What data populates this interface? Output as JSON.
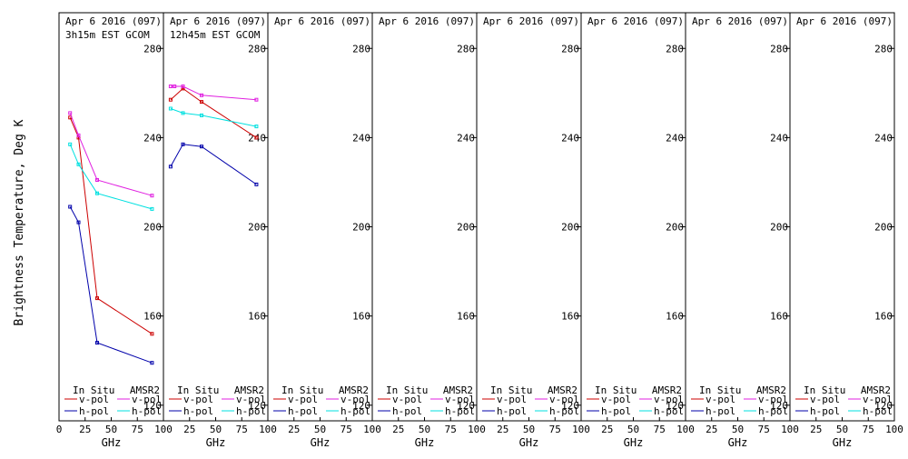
{
  "ylabel": "Brightness Temperature, Deg K",
  "yticks": [
    "120",
    "160",
    "200",
    "240",
    "280"
  ],
  "legend": {
    "col1_title": "In Situ",
    "col2_title": "AMSR2",
    "v_label": "v-pol",
    "h_label": "h-pol"
  },
  "colors": {
    "insitu_v": "#cc0000",
    "insitu_h": "#0000aa",
    "amsr2_v": "#e020e0",
    "amsr2_h": "#00e0e0",
    "axis": "#000000"
  },
  "chart_data": [
    {
      "type": "line",
      "title": "Apr 6 2016 (097)",
      "subtitle": "3h15m EST GCOM",
      "xlabel": "GHz",
      "xticks": [
        "0",
        "25",
        "50",
        "75",
        "100"
      ],
      "ylabel": "Brightness Temperature, Deg K",
      "xlim": [
        0,
        100
      ],
      "ylim": [
        113,
        296
      ],
      "series": [
        {
          "name": "In Situ v-pol",
          "x": [
            10.65,
            18.7,
            36.5,
            89
          ],
          "y": [
            249,
            240,
            168,
            152
          ]
        },
        {
          "name": "In Situ h-pol",
          "x": [
            10.65,
            18.7,
            36.5,
            89
          ],
          "y": [
            209,
            202,
            148,
            139
          ]
        },
        {
          "name": "AMSR2 v-pol",
          "x": [
            10.65,
            18.7,
            36.5,
            89
          ],
          "y": [
            251,
            241,
            221,
            214
          ]
        },
        {
          "name": "AMSR2 h-pol",
          "x": [
            10.65,
            18.7,
            36.5,
            89
          ],
          "y": [
            237,
            228,
            215,
            208
          ]
        }
      ]
    },
    {
      "type": "line",
      "title": "Apr 6 2016 (097)",
      "subtitle": "12h45m EST GCOM",
      "xlabel": "GHz",
      "xticks": [
        "25",
        "50",
        "75",
        "100"
      ],
      "ylabel": "Brightness Temperature, Deg K",
      "xlim": [
        0,
        100
      ],
      "ylim": [
        113,
        296
      ],
      "series": [
        {
          "name": "In Situ v-pol",
          "x": [
            6.9,
            18.7,
            36.5,
            89
          ],
          "y": [
            257,
            262,
            256,
            240
          ]
        },
        {
          "name": "In Situ h-pol",
          "x": [
            6.9,
            18.7,
            36.5,
            89
          ],
          "y": [
            227,
            237,
            236,
            219
          ]
        },
        {
          "name": "AMSR2 v-pol",
          "x": [
            6.9,
            10.65,
            18.7,
            36.5,
            89
          ],
          "y": [
            263,
            263,
            263,
            259,
            257
          ]
        },
        {
          "name": "AMSR2 h-pol",
          "x": [
            6.9,
            18.7,
            36.5,
            89
          ],
          "y": [
            253,
            251,
            250,
            245
          ]
        }
      ]
    },
    {
      "type": "line",
      "title": "Apr 6 2016 (097)",
      "subtitle": "",
      "xlabel": "GHz",
      "xticks": [
        "25",
        "50",
        "75",
        "100"
      ],
      "ylabel": "Brightness Temperature, Deg K",
      "xlim": [
        0,
        100
      ],
      "ylim": [
        113,
        296
      ],
      "series": []
    },
    {
      "type": "line",
      "title": "Apr 6 2016 (097)",
      "subtitle": "",
      "xlabel": "GHz",
      "xticks": [
        "25",
        "50",
        "75",
        "100"
      ],
      "ylabel": "Brightness Temperature, Deg K",
      "xlim": [
        0,
        100
      ],
      "ylim": [
        113,
        296
      ],
      "series": []
    },
    {
      "type": "line",
      "title": "Apr 6 2016 (097)",
      "subtitle": "",
      "xlabel": "GHz",
      "xticks": [
        "25",
        "50",
        "75",
        "100"
      ],
      "ylabel": "Brightness Temperature, Deg K",
      "xlim": [
        0,
        100
      ],
      "ylim": [
        113,
        296
      ],
      "series": []
    },
    {
      "type": "line",
      "title": "Apr 6 2016 (097)",
      "subtitle": "",
      "xlabel": "GHz",
      "xticks": [
        "25",
        "50",
        "75",
        "100"
      ],
      "ylabel": "Brightness Temperature, Deg K",
      "xlim": [
        0,
        100
      ],
      "ylim": [
        113,
        296
      ],
      "series": []
    },
    {
      "type": "line",
      "title": "Apr 6 2016 (097)",
      "subtitle": "",
      "xlabel": "GHz",
      "xticks": [
        "25",
        "50",
        "75",
        "100"
      ],
      "ylabel": "Brightness Temperature, Deg K",
      "xlim": [
        0,
        100
      ],
      "ylim": [
        113,
        296
      ],
      "series": []
    },
    {
      "type": "line",
      "title": "Apr 6 2016 (097)",
      "subtitle": "",
      "xlabel": "GHz",
      "xticks": [
        "25",
        "50",
        "75",
        "100"
      ],
      "ylabel": "Brightness Temperature, Deg K",
      "xlim": [
        0,
        100
      ],
      "ylim": [
        113,
        296
      ],
      "series": []
    }
  ]
}
